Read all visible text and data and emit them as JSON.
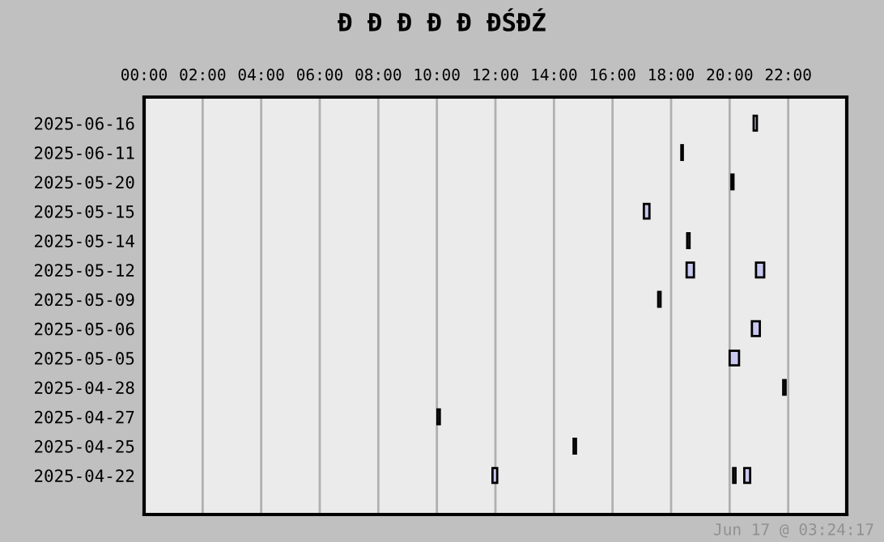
{
  "chart_data": {
    "type": "bar",
    "orientation": "horizontal",
    "title": "Đ Đ Đ Đ Đ ĐŚĐŹ",
    "categories": [
      "2025-06-16",
      "2025-06-11",
      "2025-05-20",
      "2025-05-15",
      "2025-05-14",
      "2025-05-12",
      "2025-05-09",
      "2025-05-06",
      "2025-05-05",
      "2025-04-28",
      "2025-04-27",
      "2025-04-25",
      "2025-04-22"
    ],
    "series": [
      {
        "color": "#c8c8f0",
        "base": [
          20.82,
          18.35,
          20.06,
          17.07,
          18.55,
          18.53,
          17.56,
          20.76,
          20.0,
          21.83,
          10.02,
          14.67,
          11.9
        ],
        "values": [
          0.11,
          0.05,
          0.07,
          0.19,
          0.08,
          0.25,
          0.08,
          0.27,
          0.32,
          0.08,
          0.08,
          0.08,
          0.16
        ]
      },
      {
        "color": "#c8c8f0",
        "base": [
          null,
          null,
          null,
          null,
          null,
          20.9,
          null,
          null,
          null,
          null,
          null,
          null,
          20.12
        ],
        "values": [
          null,
          null,
          null,
          null,
          null,
          0.28,
          null,
          null,
          null,
          null,
          null,
          null,
          0.08
        ]
      },
      {
        "color": "#c8c8f0",
        "base": [
          null,
          null,
          null,
          null,
          null,
          null,
          null,
          null,
          null,
          null,
          null,
          null,
          20.5
        ],
        "values": [
          null,
          null,
          null,
          null,
          null,
          null,
          null,
          null,
          null,
          null,
          null,
          null,
          0.2
        ]
      }
    ],
    "xlim": [
      0,
      24
    ],
    "xticks": [
      {
        "value": 0,
        "label": "00:00"
      },
      {
        "value": 2,
        "label": "02:00"
      },
      {
        "value": 4,
        "label": "04:00"
      },
      {
        "value": 6,
        "label": "06:00"
      },
      {
        "value": 8,
        "label": "08:00"
      },
      {
        "value": 10,
        "label": "10:00"
      },
      {
        "value": 12,
        "label": "12:00"
      },
      {
        "value": 14,
        "label": "14:00"
      },
      {
        "value": 16,
        "label": "16:00"
      },
      {
        "value": 18,
        "label": "18:00"
      },
      {
        "value": 20,
        "label": "20:00"
      },
      {
        "value": 22,
        "label": "22:00"
      }
    ],
    "grid": "x",
    "annotations": [
      "Jun 17 @ 03:24:17"
    ]
  }
}
